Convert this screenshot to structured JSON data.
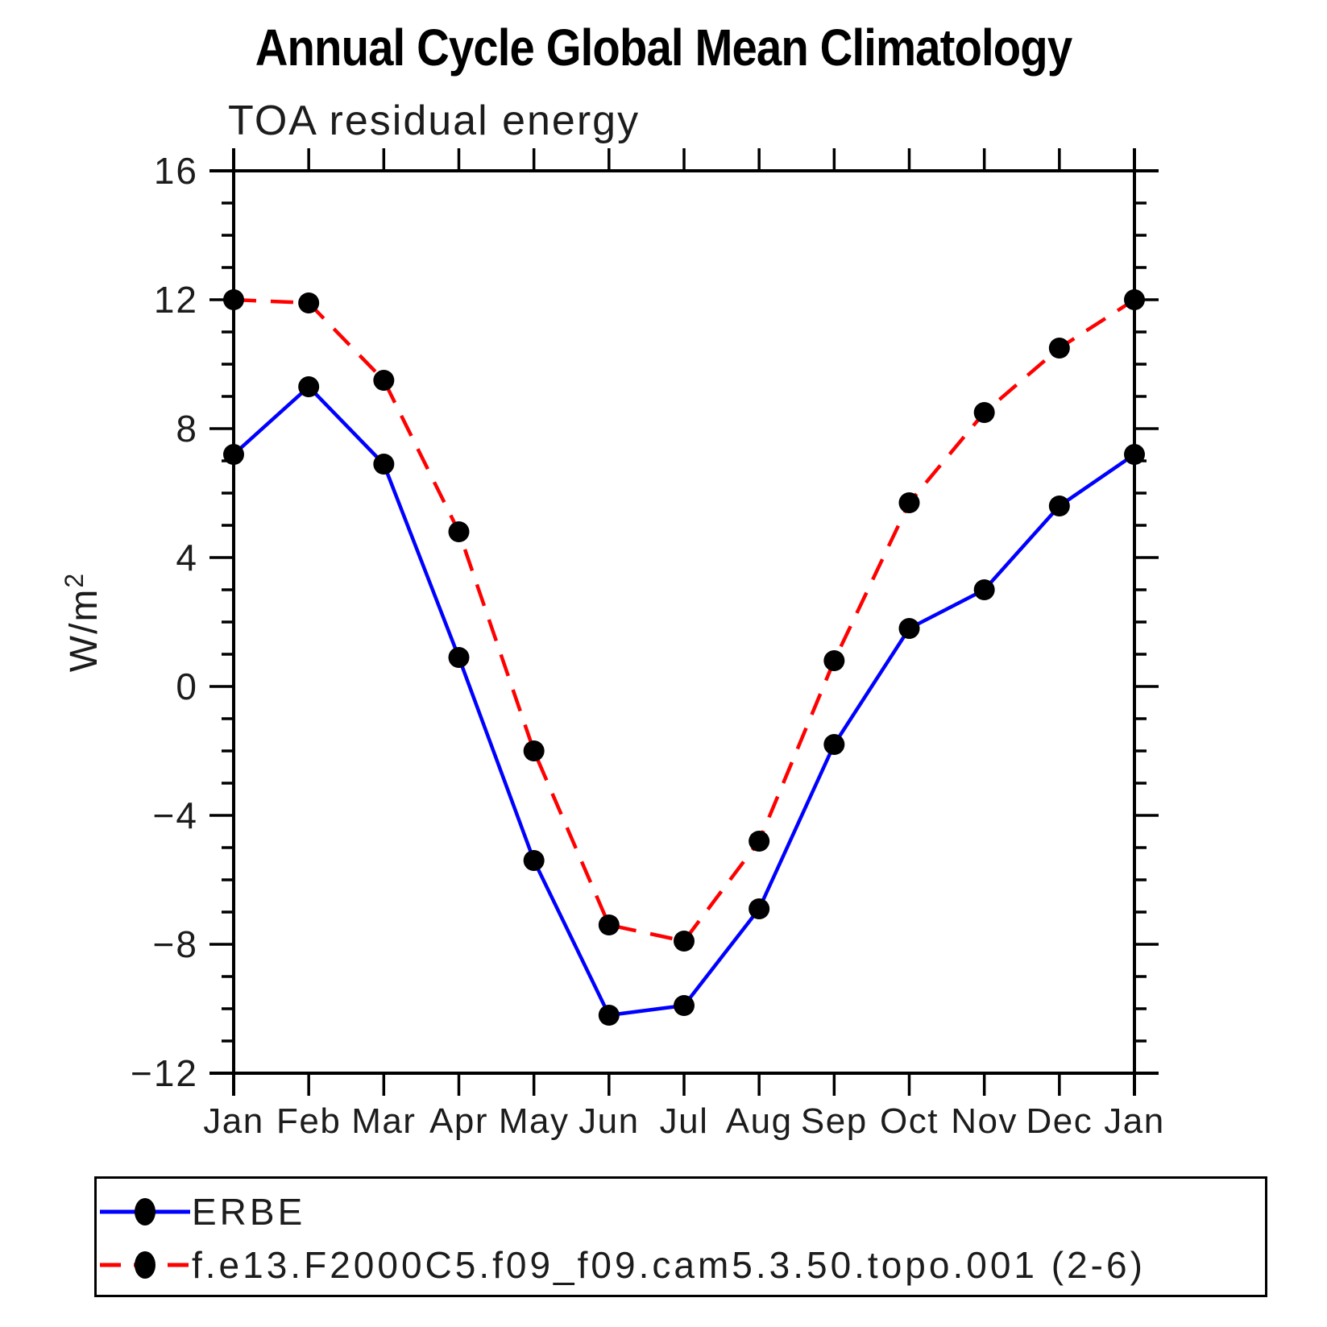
{
  "title": "Annual Cycle Global Mean Climatology",
  "chart_data": {
    "type": "line",
    "title": "Annual Cycle Global Mean Climatology",
    "subtitle": "TOA residual energy",
    "ylabel": "W/m²",
    "ylabel_base": "W/m",
    "ylabel_sup": "2",
    "categories": [
      "Jan",
      "Feb",
      "Mar",
      "Apr",
      "May",
      "Jun",
      "Jul",
      "Aug",
      "Sep",
      "Oct",
      "Nov",
      "Dec",
      "Jan"
    ],
    "ylim": [
      -12,
      16
    ],
    "ytick_major_step": 4,
    "ytick_minor_step": 1,
    "ytick_labels": [
      16,
      12,
      8,
      4,
      0,
      -4,
      -8,
      -12
    ],
    "grid": false,
    "legend_position": "bottom",
    "axis_color": "#000000",
    "marker_color": "#000000",
    "series": [
      {
        "name": "ERBE",
        "color": "#0000ff",
        "line_style": "solid",
        "marker": "filled-circle",
        "values": [
          7.2,
          9.3,
          6.9,
          0.9,
          -5.4,
          -10.2,
          -9.9,
          -6.9,
          -1.8,
          1.8,
          3.0,
          5.6,
          7.2
        ]
      },
      {
        "name": "f.e13.F2000C5.f09_f09.cam5.3.50.topo.001 (2-6)",
        "color": "#ff0000",
        "line_style": "dashed",
        "marker": "filled-circle",
        "values": [
          12.0,
          11.9,
          9.5,
          4.8,
          -2.0,
          -7.4,
          -7.9,
          -4.8,
          0.8,
          5.7,
          8.5,
          10.5,
          12.0
        ]
      }
    ]
  }
}
